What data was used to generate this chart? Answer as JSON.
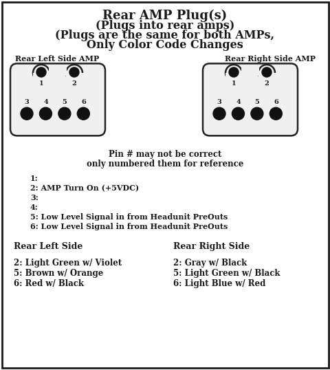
{
  "title_lines": [
    "Rear AMP Plug(s)",
    "(Plugs into rear amps)",
    "(Plugs are the same for both AMPs,",
    "Only Color Code Changes"
  ],
  "left_label": "Rear Left Side AMP",
  "right_label": "Rear Right Side AMP",
  "pin_note_line1": "Pin # may not be correct",
  "pin_note_line2": "only numbered them for reference",
  "pin_descriptions": [
    "1:",
    "2: AMP Turn On (+5VDC)",
    "3:",
    "4:",
    "5: Low Level Signal in from Headunit PreOuts",
    "6: Low Level Signal in from Headunit PreOuts"
  ],
  "left_side_header": "Rear Left Side",
  "right_side_header": "Rear Right Side",
  "left_wires": [
    "2: Light Green w/ Violet",
    "5: Brown w/ Orange",
    "6: Red w/ Black"
  ],
  "right_wires": [
    "2: Gray w/ Black",
    "5: Light Green w/ Black",
    "6: Light Blue w/ Red"
  ],
  "bg_color": "#ffffff",
  "border_color": "#1a1a1a",
  "text_color": "#1a1a1a",
  "connector_fill": "#f0f0f0",
  "connector_border": "#222222",
  "dot_color": "#111111",
  "figw": 4.81,
  "figh": 5.38,
  "dpi": 100
}
